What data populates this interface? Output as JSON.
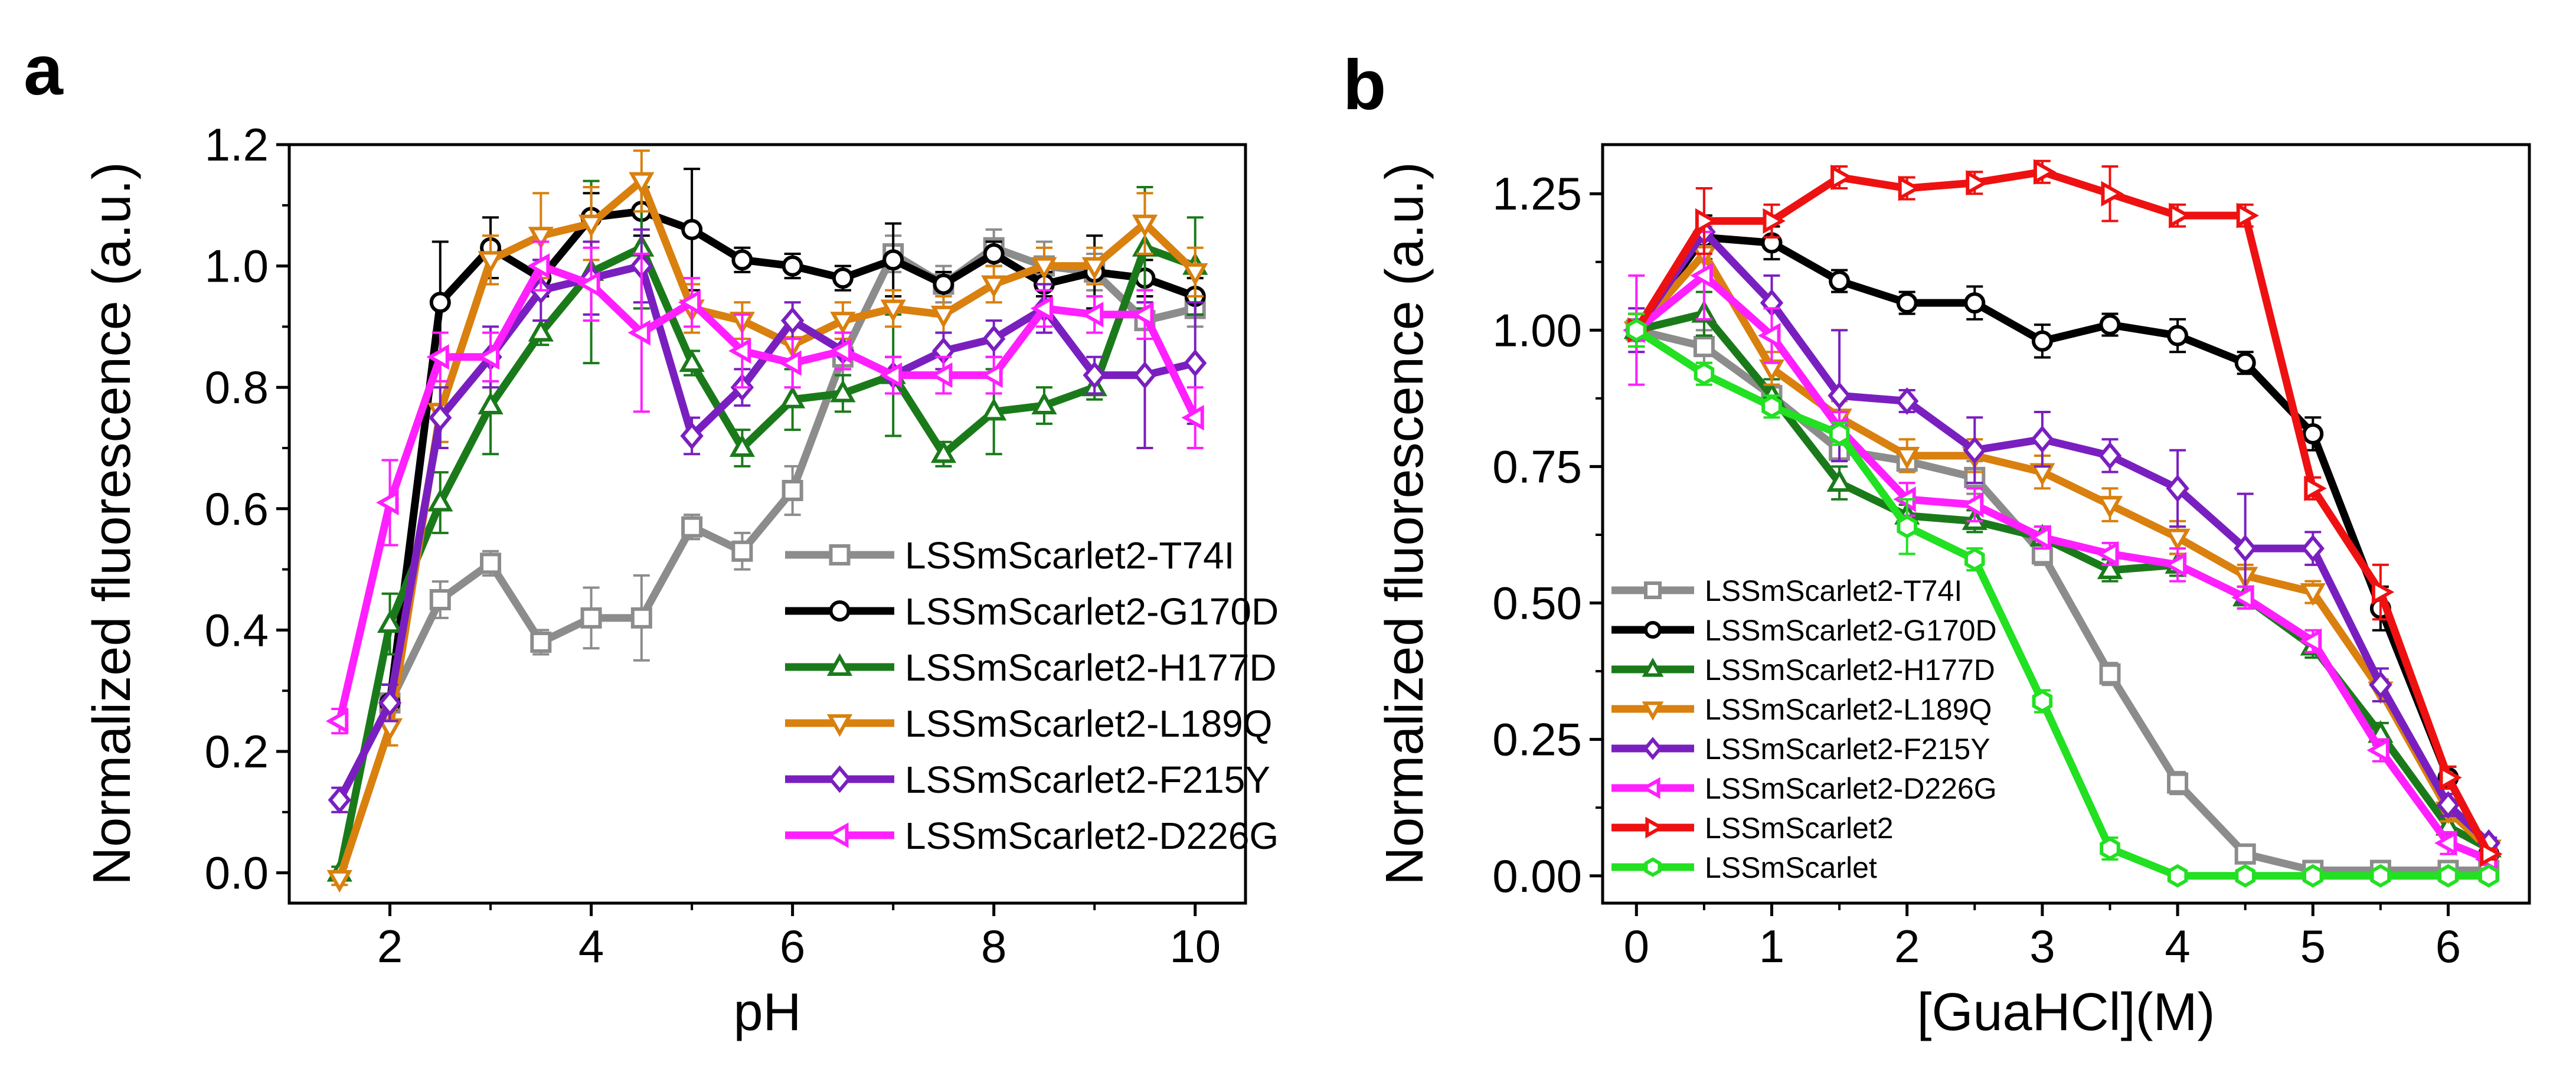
{
  "chart_data": [
    {
      "panel": "a",
      "type": "line",
      "xlabel": "pH",
      "ylabel": "Normalized fluorescence (a.u.)",
      "xlim": [
        1.0,
        10.5
      ],
      "ylim": [
        -0.05,
        1.2
      ],
      "xticks": [
        2,
        4,
        6,
        8,
        10
      ],
      "xtick_labels": [
        "2",
        "4",
        "6",
        "8",
        "10"
      ],
      "yticks": [
        0.0,
        0.2,
        0.4,
        0.6,
        0.8,
        1.0,
        1.2
      ],
      "ytick_labels": [
        "0.0",
        "0.2",
        "0.4",
        "0.6",
        "0.8",
        "1.0",
        "1.2"
      ],
      "legend_position": "center-right",
      "x": [
        1.5,
        2.0,
        2.5,
        3.0,
        3.5,
        4.0,
        4.5,
        5.0,
        5.5,
        6.0,
        6.5,
        7.0,
        7.5,
        8.0,
        8.5,
        9.0,
        9.5,
        10.0
      ],
      "series": [
        {
          "name": "LSSmScarlet2-T74I",
          "color": "#8c8c8c",
          "marker": "square",
          "values": [
            null,
            0.28,
            0.45,
            0.51,
            0.38,
            0.42,
            0.42,
            0.57,
            0.53,
            0.63,
            0.85,
            1.02,
            0.97,
            1.03,
            1.0,
            0.99,
            0.91,
            0.93
          ],
          "errors": [
            0,
            0.03,
            0.03,
            0.02,
            0.02,
            0.05,
            0.07,
            0.02,
            0.03,
            0.04,
            0.03,
            0.03,
            0.03,
            0.03,
            0.04,
            0.03,
            0.03,
            0.03
          ]
        },
        {
          "name": "LSSmScarlet2-G170D",
          "color": "#000000",
          "marker": "circle",
          "values": [
            null,
            0.28,
            0.94,
            1.03,
            0.98,
            1.08,
            1.09,
            1.06,
            1.01,
            1.0,
            0.98,
            1.01,
            0.97,
            1.02,
            0.97,
            0.99,
            0.98,
            0.95
          ],
          "errors": [
            0,
            0.03,
            0.1,
            0.05,
            0.03,
            0.04,
            0.04,
            0.1,
            0.02,
            0.02,
            0.02,
            0.06,
            0.02,
            0.02,
            0.02,
            0.06,
            0.03,
            0.03
          ]
        },
        {
          "name": "LSSmScarlet2-H177D",
          "color": "#1a7a1a",
          "marker": "triangle-up",
          "values": [
            0.0,
            0.41,
            0.61,
            0.77,
            0.89,
            0.99,
            1.03,
            0.84,
            0.7,
            0.78,
            0.79,
            0.82,
            0.69,
            0.76,
            0.77,
            0.8,
            1.03,
            1.0
          ],
          "errors": [
            0.01,
            0.05,
            0.05,
            0.08,
            0.02,
            0.15,
            0.1,
            0.02,
            0.03,
            0.05,
            0.03,
            0.1,
            0.02,
            0.07,
            0.03,
            0.02,
            0.1,
            0.08
          ]
        },
        {
          "name": "LSSmScarlet2-L189Q",
          "color": "#d9800f",
          "marker": "triangle-down",
          "values": [
            -0.01,
            0.24,
            0.76,
            1.01,
            1.05,
            1.07,
            1.14,
            0.93,
            0.91,
            0.87,
            0.91,
            0.93,
            0.92,
            0.97,
            1.0,
            1.0,
            1.07,
            0.99
          ],
          "errors": [
            0.01,
            0.03,
            0.05,
            0.04,
            0.07,
            0.06,
            0.05,
            0.04,
            0.03,
            0.03,
            0.03,
            0.03,
            0.03,
            0.03,
            0.03,
            0.03,
            0.05,
            0.04
          ]
        },
        {
          "name": "LSSmScarlet2-F215Y",
          "color": "#7a1fbf",
          "marker": "diamond",
          "values": [
            0.12,
            0.28,
            0.75,
            0.85,
            0.96,
            0.98,
            1.0,
            0.72,
            0.8,
            0.91,
            0.86,
            0.82,
            0.86,
            0.88,
            0.93,
            0.82,
            0.82,
            0.84
          ],
          "errors": [
            0.02,
            0.03,
            0.05,
            0.05,
            0.05,
            0.06,
            0.06,
            0.03,
            0.03,
            0.03,
            0.03,
            0.03,
            0.03,
            0.03,
            0.04,
            0.03,
            0.12,
            0.1
          ]
        },
        {
          "name": "LSSmScarlet2-D226G",
          "color": "#ff1fff",
          "marker": "triangle-left",
          "values": [
            0.25,
            0.61,
            0.85,
            0.85,
            1.0,
            0.97,
            0.89,
            0.94,
            0.86,
            0.84,
            0.86,
            0.82,
            0.82,
            0.82,
            0.93,
            0.92,
            0.92,
            0.75
          ],
          "errors": [
            0.02,
            0.07,
            0.04,
            0.04,
            0.04,
            0.06,
            0.13,
            0.04,
            0.06,
            0.04,
            0.03,
            0.03,
            0.03,
            0.03,
            0.03,
            0.03,
            0.04,
            0.05
          ]
        }
      ]
    },
    {
      "panel": "b",
      "type": "line",
      "xlabel": "[GuaHCl](M)",
      "ylabel": "Normalized fluorescence (a.u.)",
      "xlim": [
        -0.25,
        6.6
      ],
      "ylim": [
        -0.05,
        1.34
      ],
      "xticks": [
        0,
        1,
        2,
        3,
        4,
        5,
        6
      ],
      "xtick_labels": [
        "0",
        "1",
        "2",
        "3",
        "4",
        "5",
        "6"
      ],
      "yticks": [
        0.0,
        0.25,
        0.5,
        0.75,
        1.0,
        1.25
      ],
      "ytick_labels": [
        "0.00",
        "0.25",
        "0.50",
        "0.75",
        "1.00",
        "1.25"
      ],
      "legend_position": "bottom-left",
      "x": [
        0,
        0.5,
        1.0,
        1.5,
        2.0,
        2.5,
        3.0,
        3.5,
        4.0,
        4.5,
        5.0,
        5.5,
        6.0,
        6.3
      ],
      "series": [
        {
          "name": "LSSmScarlet2-T74I",
          "color": "#8c8c8c",
          "marker": "square",
          "values": [
            1.0,
            0.97,
            0.88,
            0.78,
            0.76,
            0.73,
            0.59,
            0.37,
            0.17,
            0.04,
            0.01,
            0.01,
            0.01,
            0.01
          ],
          "errors": [
            0.02,
            0.03,
            0.02,
            0.02,
            0.02,
            0.03,
            0.02,
            0.02,
            0.02,
            0.01,
            0.01,
            0.01,
            0.01,
            0.01
          ]
        },
        {
          "name": "LSSmScarlet2-G170D",
          "color": "#000000",
          "marker": "circle",
          "values": [
            1.0,
            1.17,
            1.16,
            1.09,
            1.05,
            1.05,
            0.98,
            1.01,
            0.99,
            0.94,
            0.81,
            0.49,
            0.18,
            0.04
          ],
          "errors": [
            0.03,
            0.04,
            0.03,
            0.02,
            0.02,
            0.03,
            0.03,
            0.02,
            0.03,
            0.02,
            0.03,
            0.04,
            0.02,
            0.01
          ]
        },
        {
          "name": "LSSmScarlet2-H177D",
          "color": "#1a7a1a",
          "marker": "triangle-up",
          "values": [
            1.0,
            1.03,
            0.88,
            0.72,
            0.66,
            0.65,
            0.62,
            0.56,
            0.57,
            0.51,
            0.42,
            0.26,
            0.09,
            0.05
          ],
          "errors": [
            0.03,
            0.04,
            0.03,
            0.03,
            0.02,
            0.02,
            0.02,
            0.02,
            0.02,
            0.02,
            0.02,
            0.02,
            0.02,
            0.01
          ]
        },
        {
          "name": "LSSmScarlet2-L189Q",
          "color": "#d9800f",
          "marker": "triangle-down",
          "values": [
            1.0,
            1.14,
            0.93,
            0.84,
            0.77,
            0.77,
            0.74,
            0.68,
            0.62,
            0.55,
            0.52,
            0.34,
            0.12,
            0.05
          ],
          "errors": [
            0.03,
            0.05,
            0.03,
            0.03,
            0.03,
            0.03,
            0.03,
            0.03,
            0.03,
            0.02,
            0.02,
            0.02,
            0.02,
            0.01
          ]
        },
        {
          "name": "LSSmScarlet2-F215Y",
          "color": "#7a1fbf",
          "marker": "diamond",
          "values": [
            1.0,
            1.18,
            1.05,
            0.88,
            0.87,
            0.78,
            0.8,
            0.77,
            0.71,
            0.6,
            0.6,
            0.35,
            0.13,
            0.06
          ],
          "errors": [
            0.04,
            0.08,
            0.05,
            0.12,
            0.02,
            0.06,
            0.05,
            0.03,
            0.07,
            0.1,
            0.03,
            0.03,
            0.02,
            0.01
          ]
        },
        {
          "name": "LSSmScarlet2-D226G",
          "color": "#ff1fff",
          "marker": "triangle-left",
          "values": [
            1.0,
            1.1,
            0.99,
            0.82,
            0.69,
            0.68,
            0.62,
            0.59,
            0.57,
            0.51,
            0.43,
            0.23,
            0.06,
            0.03
          ],
          "errors": [
            0.1,
            0.08,
            0.05,
            0.03,
            0.03,
            0.03,
            0.02,
            0.02,
            0.03,
            0.02,
            0.02,
            0.02,
            0.02,
            0.01
          ]
        },
        {
          "name": "LSSmScarlet2",
          "color": "#ee1111",
          "marker": "triangle-right",
          "values": [
            1.0,
            1.2,
            1.2,
            1.28,
            1.26,
            1.27,
            1.29,
            1.25,
            1.21,
            1.21,
            0.71,
            0.52,
            0.18,
            0.04
          ],
          "errors": [
            0.03,
            0.06,
            0.03,
            0.02,
            0.02,
            0.02,
            0.02,
            0.05,
            0.02,
            0.02,
            0.02,
            0.05,
            0.02,
            0.01
          ]
        },
        {
          "name": "LSSmScarlet",
          "color": "#22e022",
          "marker": "hexagon",
          "values": [
            1.0,
            0.92,
            0.86,
            0.81,
            0.64,
            0.58,
            0.32,
            0.05,
            0.0,
            0.0,
            0.0,
            0.0,
            0.0,
            0.0
          ],
          "errors": [
            0.03,
            0.02,
            0.02,
            0.02,
            0.05,
            0.02,
            0.02,
            0.02,
            0.01,
            0.01,
            0.01,
            0.01,
            0.01,
            0.01
          ]
        }
      ]
    }
  ]
}
